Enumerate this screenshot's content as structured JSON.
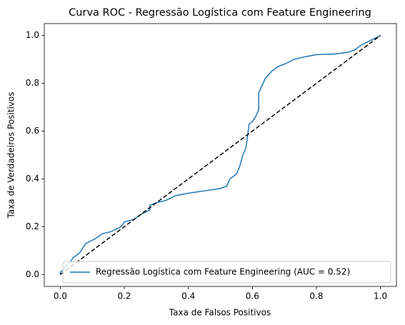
{
  "chart_data": {
    "type": "line",
    "title": "Curva ROC - Regressão Logística com Feature Engineering",
    "xlabel": "Taxa de Falsos Positivos",
    "ylabel": "Taxa de Verdadeiros Positivos",
    "xlim": [
      -0.05,
      1.05
    ],
    "ylim": [
      -0.05,
      1.05
    ],
    "xticks": [
      {
        "value": 0,
        "label": "0.0"
      },
      0.2,
      0.4,
      0.6,
      0.8,
      {
        "value": 1,
        "label": "1.0"
      }
    ],
    "yticks": [
      {
        "value": 0,
        "label": "0.0"
      },
      0.2,
      0.4,
      0.6,
      0.8,
      {
        "value": 1,
        "label": "1.0"
      }
    ],
    "legend": "lower right",
    "series": [
      {
        "name": "Regressão Logística com Feature Engineering (AUC = 0.52)",
        "color": "#1f77b4",
        "linestyle": "solid",
        "x": [
          0,
          0,
          0.01,
          0.02,
          0.03,
          0.04,
          0.06,
          0.07,
          0.08,
          0.11,
          0.13,
          0.16,
          0.19,
          0.2,
          0.23,
          0.25,
          0.28,
          0.28,
          0.3,
          0.33,
          0.36,
          0.4,
          0.45,
          0.5,
          0.52,
          0.53,
          0.55,
          0.56,
          0.57,
          0.58,
          0.59,
          0.6,
          0.61,
          0.62,
          0.62,
          0.63,
          0.64,
          0.66,
          0.68,
          0.7,
          0.73,
          0.76,
          0.8,
          0.86,
          0.9,
          0.92,
          0.94,
          0.97,
          1
        ],
        "values": [
          0,
          0.01,
          0.02,
          0.04,
          0.05,
          0.07,
          0.09,
          0.11,
          0.13,
          0.15,
          0.17,
          0.18,
          0.2,
          0.22,
          0.23,
          0.25,
          0.27,
          0.29,
          0.3,
          0.31,
          0.33,
          0.34,
          0.35,
          0.36,
          0.37,
          0.4,
          0.42,
          0.45,
          0.5,
          0.53,
          0.63,
          0.64,
          0.66,
          0.69,
          0.76,
          0.79,
          0.82,
          0.85,
          0.87,
          0.88,
          0.9,
          0.91,
          0.92,
          0.923,
          0.93,
          0.94,
          0.96,
          0.98,
          1
        ]
      },
      {
        "color": "#000000",
        "linestyle": "dashed",
        "x": [
          0,
          1
        ],
        "values": [
          0,
          1
        ]
      }
    ]
  }
}
